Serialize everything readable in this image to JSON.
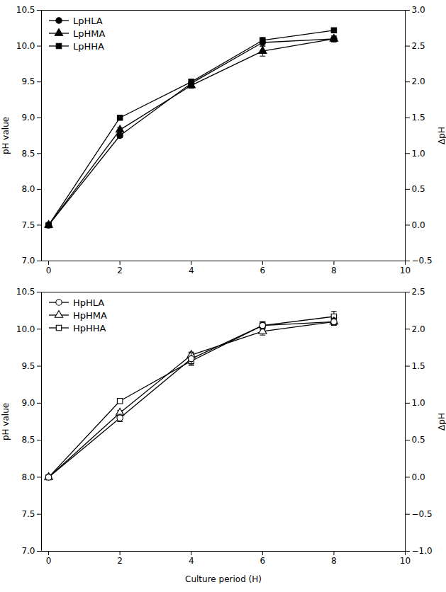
{
  "chart_data": [
    {
      "type": "line",
      "ylabel": "pH value",
      "y2label": "ΔpH",
      "x": [
        0,
        2,
        4,
        6,
        8
      ],
      "series": [
        {
          "name": "LpHLA",
          "color": "#000000",
          "marker": "circle",
          "values": [
            7.5,
            8.75,
            9.48,
            10.05,
            10.1
          ],
          "errors": [
            0.0,
            0.03,
            0.05,
            0.05,
            0.04
          ]
        },
        {
          "name": "LpHMA",
          "color": "#000000",
          "marker": "triangle",
          "values": [
            7.5,
            8.83,
            9.45,
            9.93,
            10.1
          ],
          "errors": [
            0.0,
            0.03,
            0.04,
            0.07,
            0.04
          ]
        },
        {
          "name": "LpHHA",
          "color": "#000000",
          "marker": "square",
          "values": [
            7.5,
            9.0,
            9.5,
            10.08,
            10.22
          ],
          "errors": [
            0.0,
            0.03,
            0.04,
            0.04,
            0.03
          ]
        }
      ],
      "xlim": [
        -0.2,
        10
      ],
      "xticks": [
        0,
        2,
        4,
        6,
        8,
        10
      ],
      "ylim": [
        7.0,
        10.5
      ],
      "yticks": [
        {
          "value": 7.0,
          "label": "7.0"
        },
        7.5,
        {
          "value": 8.0,
          "label": "8.0"
        },
        8.5,
        {
          "value": 9.0,
          "label": "9.0"
        },
        9.5,
        {
          "value": 10.0,
          "label": "10.0"
        },
        10.5
      ],
      "y2lim": [
        -0.5,
        3.0
      ],
      "y2ticks": [
        {
          "value": -0.5,
          "label": "−0.5"
        },
        {
          "value": 0.0,
          "label": "0.0"
        },
        0.5,
        {
          "value": 1.0,
          "label": "1.0"
        },
        1.5,
        {
          "value": 2.0,
          "label": "2.0"
        },
        2.5,
        {
          "value": 3.0,
          "label": "3.0"
        }
      ],
      "legend": "upper left",
      "grid": false
    },
    {
      "type": "line",
      "ylabel": "pH value",
      "y2label": "ΔpH",
      "xlabel": "Culture period (H)",
      "x": [
        0,
        2,
        4,
        6,
        8
      ],
      "series": [
        {
          "name": "HpHLA",
          "color": "#000000",
          "marker": "circle-open",
          "values": [
            8.0,
            8.8,
            9.6,
            10.05,
            10.1
          ],
          "errors": [
            0.0,
            0.05,
            0.08,
            0.05,
            0.05
          ]
        },
        {
          "name": "HpHMA",
          "color": "#000000",
          "marker": "triangle-open",
          "values": [
            8.0,
            8.87,
            9.65,
            9.97,
            10.1
          ],
          "errors": [
            0.0,
            0.03,
            0.04,
            0.05,
            0.04
          ]
        },
        {
          "name": "HpHHA",
          "color": "#000000",
          "marker": "square-open",
          "values": [
            8.0,
            9.03,
            9.57,
            10.05,
            10.17
          ],
          "errors": [
            0.0,
            0.03,
            0.06,
            0.05,
            0.07
          ]
        }
      ],
      "xlim": [
        -0.2,
        10
      ],
      "xticks": [
        0,
        2,
        4,
        6,
        8,
        10
      ],
      "ylim": [
        7.0,
        10.5
      ],
      "yticks": [
        {
          "value": 7.0,
          "label": "7.0"
        },
        7.5,
        {
          "value": 8.0,
          "label": "8.0"
        },
        8.5,
        {
          "value": 9.0,
          "label": "9.0"
        },
        9.5,
        {
          "value": 10.0,
          "label": "10.0"
        },
        10.5
      ],
      "y2lim": [
        -1.0,
        2.5
      ],
      "y2ticks": [
        {
          "value": -1.0,
          "label": "−1.0"
        },
        {
          "value": -0.5,
          "label": "−0.5"
        },
        {
          "value": 0.0,
          "label": "0.0"
        },
        0.5,
        {
          "value": 1.0,
          "label": "1.0"
        },
        1.5,
        {
          "value": 2.0,
          "label": "2.0"
        },
        2.5
      ],
      "legend": "upper left",
      "grid": false
    }
  ]
}
